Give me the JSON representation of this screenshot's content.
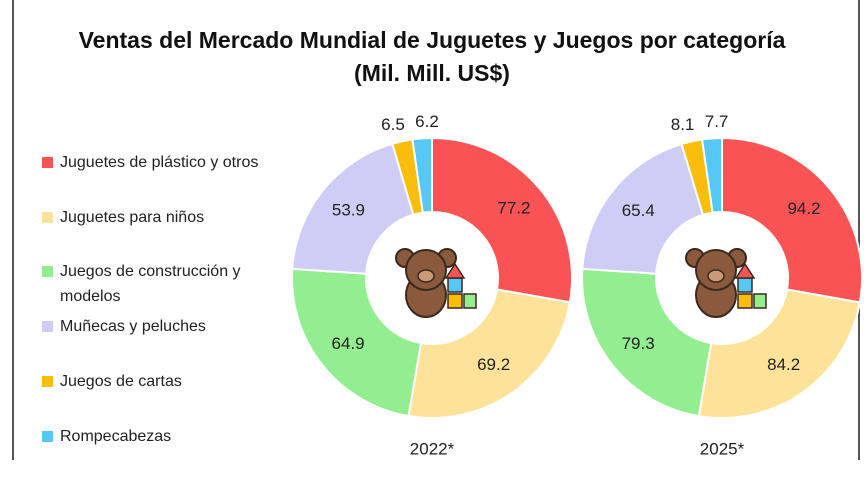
{
  "chart_data": {
    "type": "donut",
    "title": "Ventas del Mercado Mundial de Juguetes y Juegos por categoría (Mil. Mill. US$)",
    "categories": [
      "Juguetes de plástico y otros",
      "Juguetes para niños",
      "Juegos de construcción y modelos",
      "Muñecas y peluches",
      "Juegos de cartas",
      "Rompecabezas"
    ],
    "colors": [
      "#f95355",
      "#fde39a",
      "#92ee8e",
      "#cfcdf5",
      "#fbbd0b",
      "#55c8f6"
    ],
    "series": [
      {
        "name": "2022*",
        "values": [
          77.2,
          69.2,
          64.9,
          53.9,
          6.5,
          6.2
        ]
      },
      {
        "name": "2025*",
        "values": [
          94.2,
          84.2,
          79.3,
          65.4,
          8.1,
          7.7
        ]
      }
    ]
  }
}
